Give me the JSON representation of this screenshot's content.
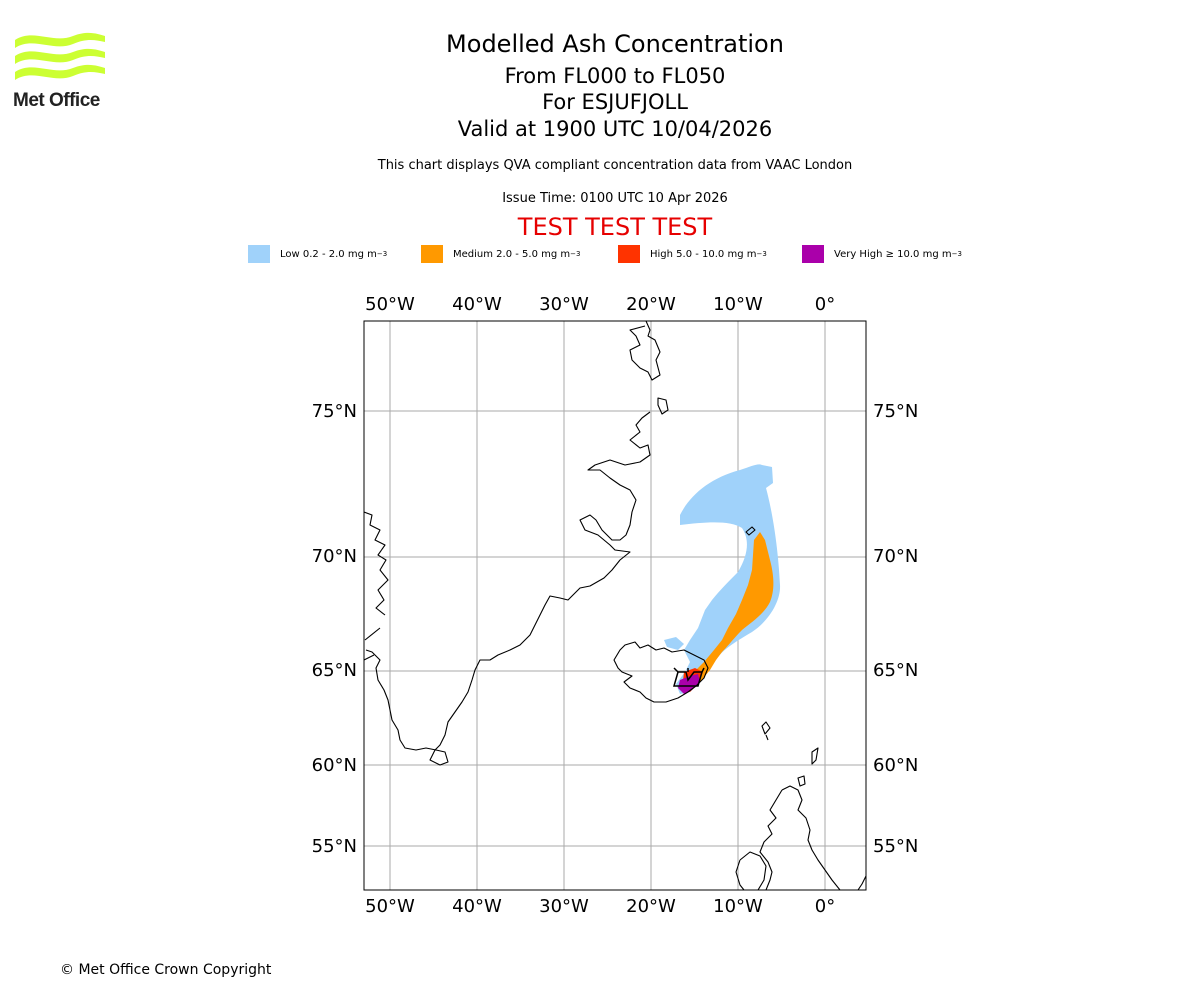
{
  "logo": {
    "text": "Met Office",
    "wave_color": "#ccff33"
  },
  "title": "Modelled Ash Concentration",
  "subtitle_levels": "From FL000 to FL050",
  "subtitle_volcano": "For ESJUFJOLL",
  "subtitle_valid": "Valid at 1900 UTC 10/04/2026",
  "description": "This chart displays QVA compliant concentration data from VAAC London",
  "issue_time": "Issue Time: 0100 UTC 10 Apr 2026",
  "test_banner": "TEST TEST TEST",
  "legend": [
    {
      "label": "Low 0.2 - 2.0 mg m",
      "sup": "−3",
      "color": "#a0d2fa"
    },
    {
      "label": "Medium 2.0 - 5.0 mg m",
      "sup": "−3",
      "color": "#ff9900"
    },
    {
      "label": "High 5.0 - 10.0 mg m",
      "sup": "−3",
      "color": "#ff3300"
    },
    {
      "label": "Very High ≥ 10.0 mg m",
      "sup": "−3",
      "color": "#aa00aa"
    }
  ],
  "map": {
    "lon_labels": [
      "50°W",
      "40°W",
      "30°W",
      "20°W",
      "10°W",
      "0°"
    ],
    "lat_labels": [
      "75°N",
      "70°N",
      "65°N",
      "60°N",
      "55°N"
    ],
    "lon_values": [
      -50,
      -40,
      -30,
      -20,
      -10,
      0
    ],
    "lat_values": [
      75,
      70,
      65,
      60,
      55
    ],
    "gridline_color": "#aaaaaa",
    "coast_color": "#000000"
  },
  "copyright": "© Met Office Crown Copyright"
}
